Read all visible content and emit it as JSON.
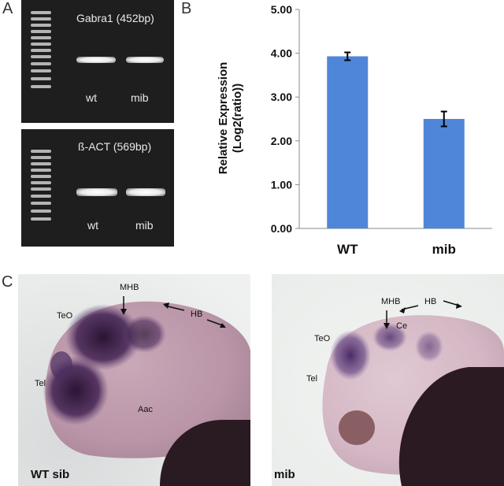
{
  "panels": {
    "a": "A",
    "b": "B",
    "c": "C"
  },
  "gel_top": {
    "label": "Gabra1 (452bp)",
    "lanes": [
      "wt",
      "mib"
    ]
  },
  "gel_bottom": {
    "label": "ß-ACT (569bp)",
    "lanes": [
      "wt",
      "mib"
    ]
  },
  "chart_data": {
    "type": "bar",
    "categories": [
      "WT",
      "mib"
    ],
    "values": [
      3.93,
      2.5
    ],
    "errors": [
      0.09,
      0.17
    ],
    "ylabel_line1": "Relative Expression",
    "ylabel_line2": "(Log2(ratio))",
    "ylim": [
      0,
      5
    ],
    "yticks": [
      "0.00",
      "1.00",
      "2.00",
      "3.00",
      "4.00",
      "5.00"
    ],
    "bar_color": "#4f86d9",
    "grid": false
  },
  "photo_left": {
    "name": "WT sib",
    "labels": {
      "mhb": "MHB",
      "hb": "HB",
      "teo": "TeO",
      "tel": "Tel",
      "aac": "Aac"
    }
  },
  "photo_right": {
    "name": "mib",
    "labels": {
      "mhb": "MHB",
      "hb": "HB",
      "ce": "Ce",
      "teo": "TeO",
      "tel": "Tel"
    }
  }
}
